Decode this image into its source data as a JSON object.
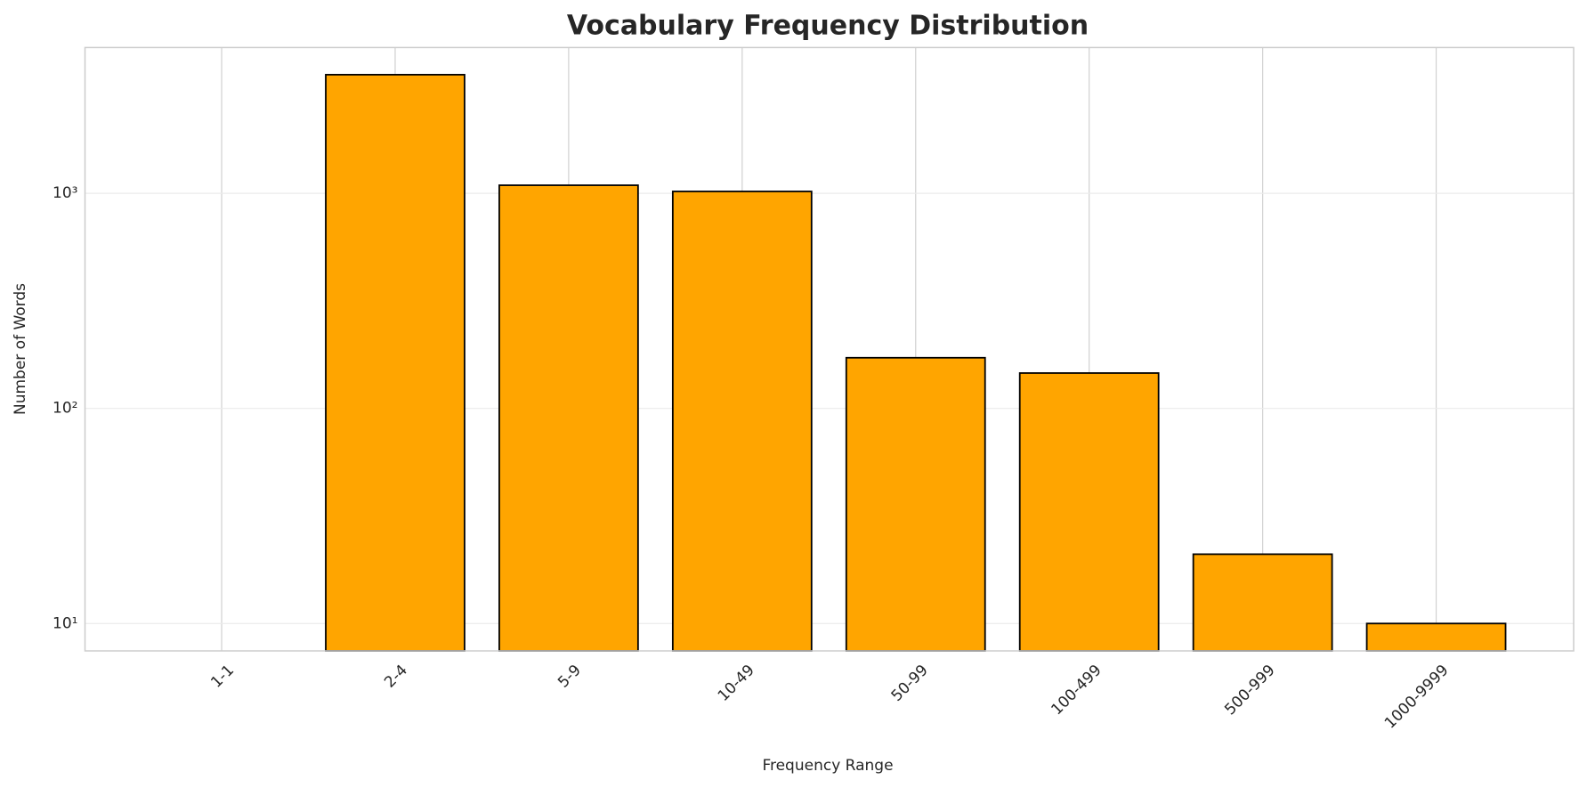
{
  "chart_data": {
    "type": "bar",
    "title": "Vocabulary Frequency Distribution",
    "x_label": "Frequency Range",
    "y_label": "Number of Words",
    "categories": [
      "1-1",
      "2-4",
      "5-9",
      "10-49",
      "50-99",
      "100-499",
      "500-999",
      "1000-9999"
    ],
    "values": [
      null,
      3560,
      1090,
      1020,
      172,
      146,
      21,
      10
    ],
    "color": "#ffa500",
    "edge_color": "#000000",
    "y_scale": "log",
    "ylim": [
      7.46,
      4760
    ],
    "yticks": [
      {
        "value": 10,
        "label": "10¹"
      },
      {
        "value": 100,
        "label": "10²"
      },
      {
        "value": 1000,
        "label": "10³"
      }
    ],
    "grid": true
  }
}
